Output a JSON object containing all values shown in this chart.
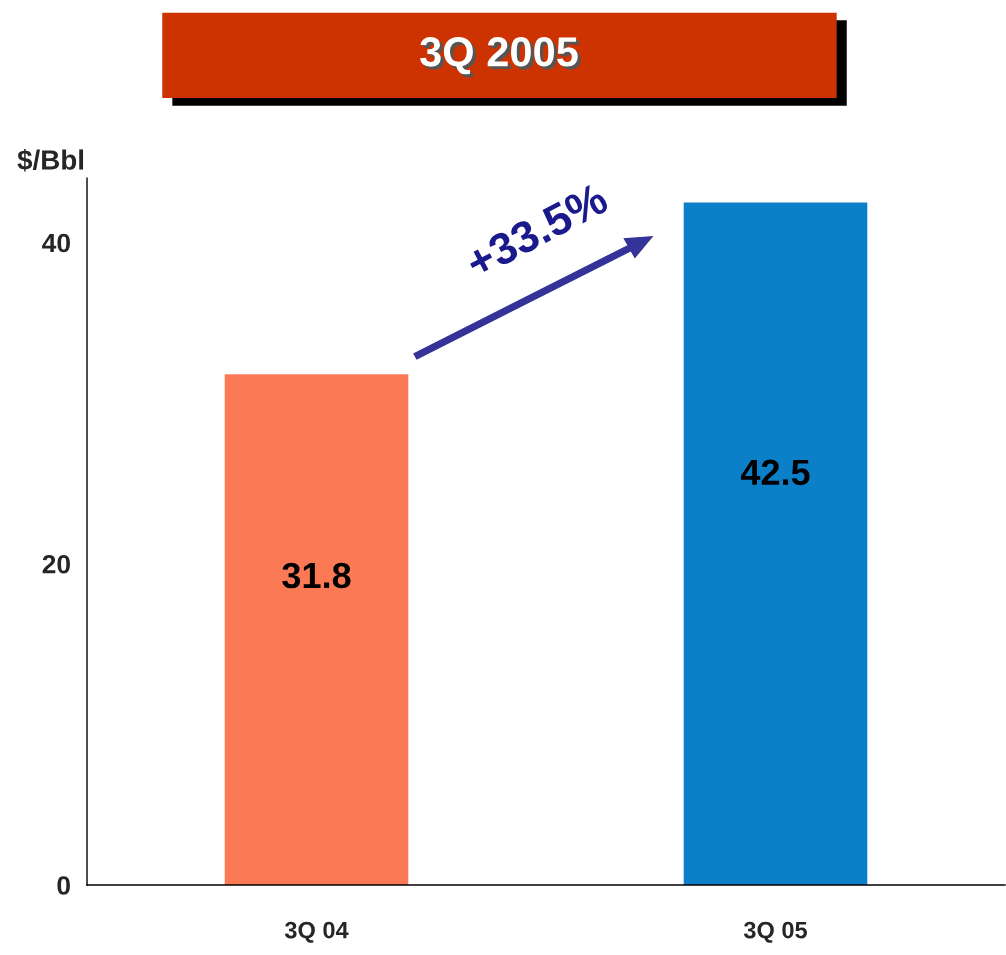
{
  "chart_data": {
    "type": "bar",
    "title": "3Q 2005",
    "ylabel": "$/Bbl",
    "categories": [
      "3Q 04",
      "3Q 05"
    ],
    "values": [
      31.8,
      42.5
    ],
    "colors": [
      "#fb7a55",
      "#0b7fc8"
    ],
    "ylim": [
      0,
      44
    ],
    "yticks": [
      0,
      20,
      40
    ],
    "data_labels": true,
    "annotations": [
      "+33.5%"
    ]
  }
}
